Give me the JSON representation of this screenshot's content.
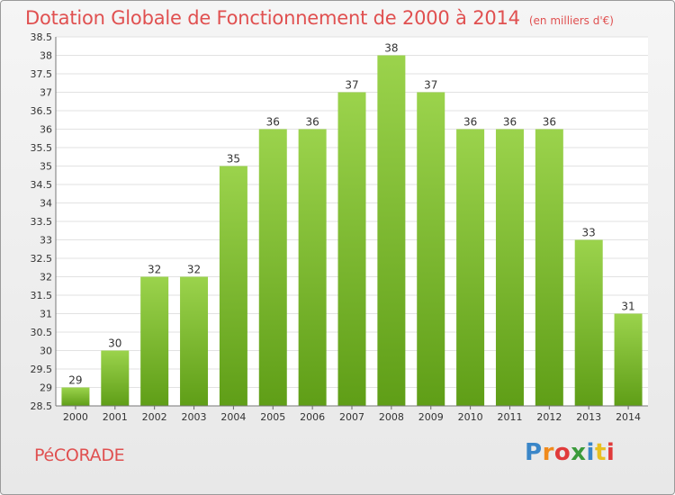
{
  "header": {
    "title": "Dotation Globale de Fonctionnement de 2000 à 2014",
    "subtitle": "(en milliers d'€)"
  },
  "footer": {
    "commune": "PéCORADE",
    "logo_text": "Proxiti"
  },
  "colors": {
    "bar_top": "#9bd34c",
    "bar_bottom": "#5f9e17",
    "title": "#e05050",
    "plot_bg": "#ffffff",
    "grid": "#e2e2e2"
  },
  "chart_data": {
    "type": "bar",
    "title": "Dotation Globale de Fonctionnement de 2000 à 2014",
    "subtitle": "(en milliers d'€)",
    "xlabel": "",
    "ylabel": "",
    "categories": [
      "2000",
      "2001",
      "2002",
      "2003",
      "2004",
      "2005",
      "2006",
      "2007",
      "2008",
      "2009",
      "2010",
      "2011",
      "2012",
      "2013",
      "2014"
    ],
    "values": [
      29,
      30,
      32,
      32,
      35,
      36,
      36,
      37,
      38,
      37,
      36,
      36,
      36,
      33,
      31
    ],
    "ylim": [
      28.5,
      38.5
    ],
    "yticks": [
      "28.5",
      "29",
      "29.5",
      "30",
      "30.5",
      "31",
      "31.5",
      "32",
      "32.5",
      "33",
      "33.5",
      "34",
      "34.5",
      "35",
      "35.5",
      "36",
      "36.5",
      "37",
      "37.5",
      "38",
      "38.5"
    ],
    "grid": true,
    "legend": "none"
  }
}
